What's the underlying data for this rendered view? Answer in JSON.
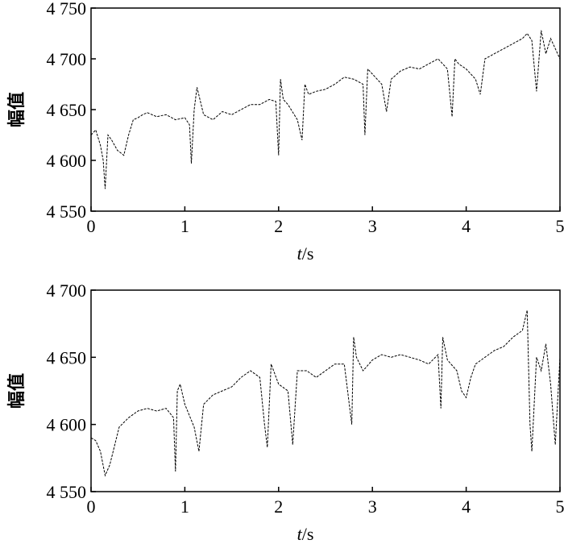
{
  "chart_data": [
    {
      "type": "line",
      "xlabel_italic": "t",
      "xlabel_unit": "/s",
      "ylabel": "幅值",
      "xlim": [
        0,
        5
      ],
      "ylim": [
        4550,
        4750
      ],
      "x_ticks": [
        0,
        1,
        2,
        3,
        4,
        5
      ],
      "x_tick_labels": [
        "0",
        "1",
        "2",
        "3",
        "4",
        "5"
      ],
      "y_ticks": [
        4550,
        4600,
        4650,
        4700,
        4750
      ],
      "y_tick_labels": [
        "4 550",
        "4 600",
        "4 650",
        "4 700",
        "4 750"
      ],
      "grid": false,
      "series": [
        {
          "x": [
            0.0,
            0.05,
            0.1,
            0.13,
            0.15,
            0.18,
            0.22,
            0.28,
            0.35,
            0.4,
            0.45,
            0.5,
            0.55,
            0.6,
            0.7,
            0.8,
            0.9,
            1.0,
            1.05,
            1.07,
            1.1,
            1.13,
            1.2,
            1.3,
            1.4,
            1.5,
            1.6,
            1.7,
            1.8,
            1.9,
            1.97,
            2.0,
            2.02,
            2.05,
            2.1,
            2.2,
            2.25,
            2.28,
            2.32,
            2.4,
            2.5,
            2.6,
            2.7,
            2.8,
            2.9,
            2.92,
            2.95,
            3.0,
            3.1,
            3.15,
            3.2,
            3.3,
            3.4,
            3.5,
            3.6,
            3.7,
            3.8,
            3.85,
            3.88,
            3.92,
            4.0,
            4.1,
            4.15,
            4.2,
            4.3,
            4.4,
            4.5,
            4.6,
            4.65,
            4.7,
            4.75,
            4.8,
            4.85,
            4.9,
            5.0
          ],
          "y": [
            4625,
            4630,
            4615,
            4600,
            4572,
            4625,
            4620,
            4610,
            4605,
            4625,
            4640,
            4642,
            4645,
            4647,
            4643,
            4645,
            4640,
            4642,
            4635,
            4597,
            4650,
            4672,
            4645,
            4640,
            4648,
            4645,
            4650,
            4655,
            4655,
            4660,
            4658,
            4605,
            4680,
            4660,
            4655,
            4640,
            4620,
            4675,
            4665,
            4668,
            4670,
            4675,
            4682,
            4680,
            4675,
            4625,
            4690,
            4685,
            4675,
            4648,
            4680,
            4688,
            4692,
            4690,
            4695,
            4700,
            4690,
            4643,
            4700,
            4695,
            4690,
            4680,
            4665,
            4700,
            4705,
            4710,
            4715,
            4720,
            4725,
            4718,
            4668,
            4728,
            4705,
            4720,
            4700
          ]
        }
      ]
    },
    {
      "type": "line",
      "xlabel_italic": "t",
      "xlabel_unit": "/s",
      "ylabel": "幅值",
      "xlim": [
        0,
        5
      ],
      "ylim": [
        4550,
        4700
      ],
      "x_ticks": [
        0,
        1,
        2,
        3,
        4,
        5
      ],
      "x_tick_labels": [
        "0",
        "1",
        "2",
        "3",
        "4",
        "5"
      ],
      "y_ticks": [
        4550,
        4600,
        4650,
        4700
      ],
      "y_tick_labels": [
        "4 550",
        "4 600",
        "4 650",
        "4 700"
      ],
      "grid": false,
      "series": [
        {
          "x": [
            0.0,
            0.05,
            0.1,
            0.15,
            0.2,
            0.3,
            0.4,
            0.5,
            0.6,
            0.7,
            0.8,
            0.88,
            0.9,
            0.92,
            0.95,
            1.0,
            1.1,
            1.15,
            1.2,
            1.3,
            1.4,
            1.5,
            1.6,
            1.7,
            1.8,
            1.85,
            1.88,
            1.92,
            2.0,
            2.1,
            2.15,
            2.2,
            2.3,
            2.4,
            2.5,
            2.6,
            2.7,
            2.78,
            2.8,
            2.83,
            2.9,
            3.0,
            3.1,
            3.2,
            3.3,
            3.4,
            3.5,
            3.6,
            3.7,
            3.73,
            3.75,
            3.8,
            3.9,
            3.95,
            4.0,
            4.05,
            4.1,
            4.2,
            4.3,
            4.4,
            4.5,
            4.6,
            4.65,
            4.68,
            4.7,
            4.75,
            4.8,
            4.85,
            4.9,
            4.95,
            5.0
          ],
          "y": [
            4590,
            4588,
            4580,
            4562,
            4570,
            4598,
            4605,
            4610,
            4612,
            4610,
            4612,
            4605,
            4565,
            4625,
            4630,
            4615,
            4598,
            4580,
            4615,
            4622,
            4625,
            4628,
            4635,
            4640,
            4635,
            4600,
            4583,
            4645,
            4630,
            4625,
            4585,
            4640,
            4640,
            4635,
            4640,
            4645,
            4645,
            4600,
            4665,
            4650,
            4640,
            4648,
            4652,
            4650,
            4652,
            4650,
            4648,
            4645,
            4652,
            4612,
            4665,
            4648,
            4640,
            4625,
            4620,
            4635,
            4645,
            4650,
            4655,
            4658,
            4665,
            4670,
            4685,
            4600,
            4580,
            4650,
            4640,
            4660,
            4630,
            4585,
            4650
          ]
        }
      ]
    }
  ]
}
